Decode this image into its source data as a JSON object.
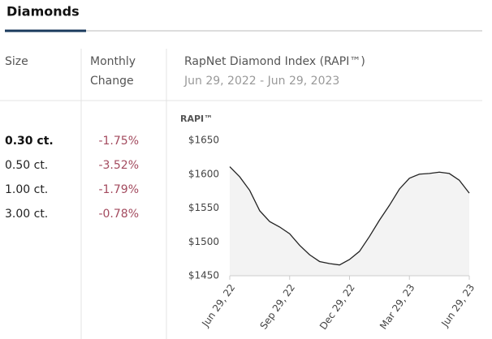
{
  "tabs": [
    "Diamonds"
  ],
  "table": {
    "headers": [
      "Size",
      "Monthly\nChange"
    ],
    "index_title": "RapNet Diamond Index (RAPI™)",
    "index_period": "Jun 29, 2022 - Jun 29, 2023",
    "rows": [
      [
        "0.30 ct.",
        "-1.75%"
      ],
      [
        "0.50 ct.",
        "-3.52%"
      ],
      [
        "1.00 ct.",
        "-1.79%"
      ],
      [
        "3.00 ct.",
        "-0.78%"
      ]
    ]
  },
  "chart_data": {
    "type": "area",
    "ylabel": "RAPI™",
    "categories": [
      "Jun 29, 22",
      null,
      null,
      null,
      null,
      null,
      "Sep 29, 22",
      null,
      null,
      null,
      null,
      null,
      "Dec 29, 22",
      null,
      null,
      null,
      null,
      null,
      "Mar 29, 23",
      null,
      null,
      null,
      null,
      null,
      "Jun 29, 23"
    ],
    "values": [
      1611,
      1596,
      1576,
      1546,
      1530,
      1522,
      1512,
      1495,
      1481,
      1471,
      1468,
      1466,
      1474,
      1486,
      1508,
      1532,
      1554,
      1578,
      1594,
      1600,
      1601,
      1603,
      1601,
      1591,
      1572
    ],
    "color": "#222222",
    "fill": "#f3f3f3",
    "ylim": [
      1450,
      1650
    ],
    "yticks": [
      {
        "value": 1450,
        "label": "$1450"
      },
      {
        "value": 1500,
        "label": "$1500"
      },
      {
        "value": 1550,
        "label": "$1550"
      },
      {
        "value": 1600,
        "label": "$1600"
      },
      {
        "value": 1650,
        "label": "$1650"
      }
    ]
  }
}
